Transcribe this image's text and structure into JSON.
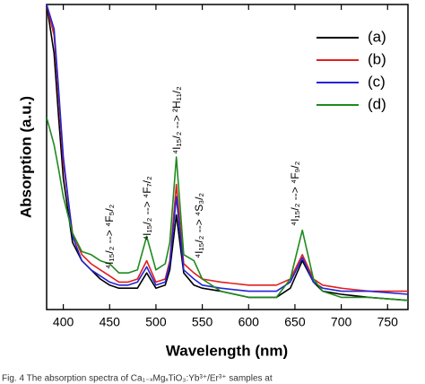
{
  "chart_data": {
    "type": "line",
    "xlabel": "Wavelength (nm)",
    "ylabel": "Absorption (a.u.)",
    "x": [
      382,
      390,
      395,
      400,
      410,
      420,
      430,
      440,
      450,
      460,
      470,
      480,
      490,
      500,
      510,
      515,
      522,
      530,
      541,
      550,
      570,
      600,
      630,
      645,
      658,
      670,
      680,
      700,
      730,
      772
    ],
    "series": [
      {
        "name": "(a)",
        "color": "#000000",
        "values": [
          100,
          84,
          63,
          43,
          22,
          16,
          13,
          10,
          8,
          7,
          7,
          7,
          12,
          7,
          8,
          13,
          31,
          12,
          8,
          7,
          6,
          4,
          4,
          7,
          16,
          9,
          6,
          5,
          4,
          3
        ]
      },
      {
        "name": "(b)",
        "color": "#e0201e",
        "values": [
          100,
          90,
          70,
          48,
          25,
          18,
          15,
          13,
          11,
          9,
          9,
          10,
          16,
          9,
          10,
          16,
          41,
          15,
          12,
          10,
          9,
          8,
          8,
          10,
          18,
          10,
          8,
          7,
          6,
          6
        ]
      },
      {
        "name": "(c)",
        "color": "#2424d6",
        "values": [
          100,
          92,
          72,
          50,
          24,
          16,
          13,
          11,
          9,
          8,
          8,
          9,
          14,
          8,
          9,
          15,
          37,
          13,
          10,
          8,
          7,
          6,
          6,
          9,
          17,
          9,
          7,
          6,
          6,
          5
        ]
      },
      {
        "name": "(d)",
        "color": "#1e8a1e",
        "values": [
          63,
          54,
          46,
          37,
          25,
          19,
          18,
          16,
          15,
          12,
          12,
          13,
          24,
          13,
          15,
          22,
          50,
          18,
          16,
          10,
          6,
          4,
          4,
          10,
          26,
          10,
          6,
          4,
          4,
          3
        ]
      }
    ],
    "xlim": [
      382,
      772
    ],
    "xticks": [
      400,
      450,
      500,
      550,
      600,
      650,
      700,
      750
    ],
    "ylim": [
      0,
      100
    ],
    "annotations": [
      "⁴I₁₅/₂ --> ⁴F₅/₂",
      "⁴I₁₅/₂ --> ⁴F₇/₂",
      "⁴I₁₅/₂ --> ²H₁₁/₂",
      "⁴I₁₅/₂ --> ⁴S₃/₂",
      "⁴I₁₅/₂ --> ⁴F₉/₂"
    ],
    "caption": "Fig. 4  The absorption spectra of Ca₁₋ₓMgₓTiO₃:Yb³⁺/Er³⁺ samples at"
  }
}
